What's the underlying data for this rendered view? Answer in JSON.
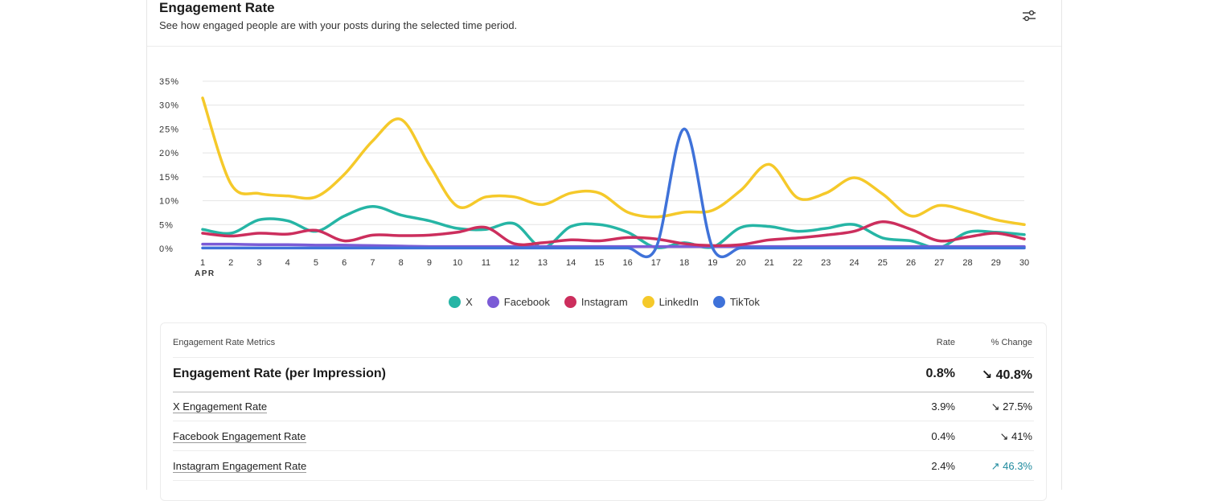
{
  "header": {
    "title": "Engagement Rate",
    "subtitle": "See how engaged people are with your posts during the selected time period."
  },
  "icons": {
    "settings": "sliders-icon"
  },
  "chart_data": {
    "type": "line",
    "x": [
      1,
      2,
      3,
      4,
      5,
      6,
      7,
      8,
      9,
      10,
      11,
      12,
      13,
      14,
      15,
      16,
      17,
      18,
      19,
      20,
      21,
      22,
      23,
      24,
      25,
      26,
      27,
      28,
      29,
      30
    ],
    "xlabel": "APR",
    "ylim": [
      0,
      35
    ],
    "yticks": [
      0,
      5,
      10,
      15,
      20,
      25,
      30,
      35
    ],
    "ytick_suffix": "%",
    "grid": true,
    "legend_position": "bottom",
    "series": [
      {
        "name": "X",
        "color": "#26b5a5",
        "values": [
          4.0,
          3.2,
          6.0,
          5.8,
          3.6,
          6.8,
          8.8,
          7.0,
          5.8,
          4.2,
          4.0,
          5.2,
          0.2,
          4.6,
          5.0,
          3.4,
          0.2,
          1.2,
          0.3,
          4.4,
          4.6,
          3.6,
          4.2,
          5.0,
          2.2,
          1.6,
          0.2,
          3.4,
          3.4,
          2.9
        ]
      },
      {
        "name": "Facebook",
        "color": "#7b5bd6",
        "values": [
          0.9,
          0.9,
          0.8,
          0.8,
          0.7,
          0.7,
          0.6,
          0.5,
          0.4,
          0.4,
          0.4,
          0.4,
          0.4,
          0.4,
          0.4,
          0.4,
          0.4,
          0.4,
          0.4,
          0.4,
          0.4,
          0.4,
          0.4,
          0.4,
          0.4,
          0.4,
          0.4,
          0.4,
          0.4,
          0.4
        ]
      },
      {
        "name": "Instagram",
        "color": "#cc2e5d",
        "values": [
          3.2,
          2.6,
          3.2,
          3.0,
          3.8,
          1.6,
          2.8,
          2.7,
          2.8,
          3.4,
          4.4,
          1.0,
          1.2,
          1.8,
          1.6,
          2.3,
          2.0,
          1.0,
          0.6,
          0.8,
          1.8,
          2.2,
          2.8,
          3.6,
          5.6,
          4.0,
          1.6,
          2.4,
          3.2,
          2.0
        ]
      },
      {
        "name": "LinkedIn",
        "color": "#f5c92a",
        "values": [
          31.5,
          13.5,
          11.5,
          11.0,
          10.8,
          15.5,
          22.5,
          27.0,
          17.5,
          8.8,
          10.8,
          10.8,
          9.2,
          11.6,
          11.6,
          7.6,
          6.6,
          7.6,
          8.0,
          12.2,
          17.6,
          10.6,
          11.6,
          14.8,
          11.4,
          6.8,
          9.0,
          7.8,
          6.0,
          5.0
        ]
      },
      {
        "name": "TikTok",
        "color": "#3f72d9",
        "values": [
          0.1,
          0.1,
          0.1,
          0.1,
          0.1,
          0.1,
          0.1,
          0.1,
          0.1,
          0.1,
          0.1,
          0.1,
          0.1,
          0.1,
          0.1,
          0.1,
          0.1,
          25.0,
          0.1,
          0.1,
          0.1,
          0.1,
          0.1,
          0.1,
          0.1,
          0.1,
          0.1,
          0.1,
          0.1,
          0.1
        ]
      }
    ]
  },
  "legend": [
    {
      "label": "X",
      "color": "#26b5a5"
    },
    {
      "label": "Facebook",
      "color": "#7b5bd6"
    },
    {
      "label": "Instagram",
      "color": "#cc2e5d"
    },
    {
      "label": "LinkedIn",
      "color": "#f5c92a"
    },
    {
      "label": "TikTok",
      "color": "#3f72d9"
    }
  ],
  "metrics": {
    "header_label": "Engagement Rate Metrics",
    "rate_label": "Rate",
    "change_label": "% Change",
    "total": {
      "label": "Engagement Rate (per Impression)",
      "rate": "0.8%",
      "change": "↘ 40.8%"
    },
    "rows": [
      {
        "label": "X Engagement Rate",
        "rate": "3.9%",
        "change": "↘ 27.5%",
        "direction": "down"
      },
      {
        "label": "Facebook Engagement Rate",
        "rate": "0.4%",
        "change": "↘ 41%",
        "direction": "down"
      },
      {
        "label": "Instagram Engagement Rate",
        "rate": "2.4%",
        "change": "↗ 46.3%",
        "direction": "up"
      }
    ]
  }
}
